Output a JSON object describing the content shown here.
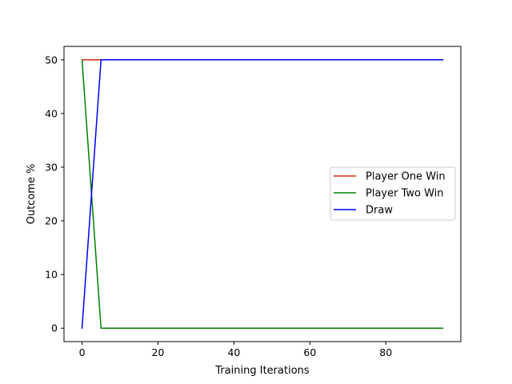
{
  "chart_data": {
    "type": "line",
    "title": "",
    "xlabel": "Training Iterations",
    "ylabel": "Outcome %",
    "xlim": [
      -4.75,
      99.75
    ],
    "ylim": [
      -2.5,
      52.5
    ],
    "xticks": [
      0,
      20,
      40,
      60,
      80
    ],
    "yticks": [
      0,
      10,
      20,
      30,
      40,
      50
    ],
    "grid": false,
    "legend_position": "center-right",
    "x": [
      0,
      5,
      10,
      15,
      20,
      25,
      30,
      35,
      40,
      45,
      50,
      55,
      60,
      65,
      70,
      75,
      80,
      85,
      90,
      95
    ],
    "series": [
      {
        "name": "Player One Win",
        "color": "#d62718",
        "values": [
          50,
          50,
          50,
          50,
          50,
          50,
          50,
          50,
          50,
          50,
          50,
          50,
          50,
          50,
          50,
          50,
          50,
          50,
          50,
          50
        ]
      },
      {
        "name": "Player Two Win",
        "color": "#008000",
        "values": [
          50,
          0,
          0,
          0,
          0,
          0,
          0,
          0,
          0,
          0,
          0,
          0,
          0,
          0,
          0,
          0,
          0,
          0,
          0,
          0
        ]
      },
      {
        "name": "Draw",
        "color": "#0000ff",
        "values": [
          0,
          50,
          50,
          50,
          50,
          50,
          50,
          50,
          50,
          50,
          50,
          50,
          50,
          50,
          50,
          50,
          50,
          50,
          50,
          50
        ]
      }
    ]
  }
}
